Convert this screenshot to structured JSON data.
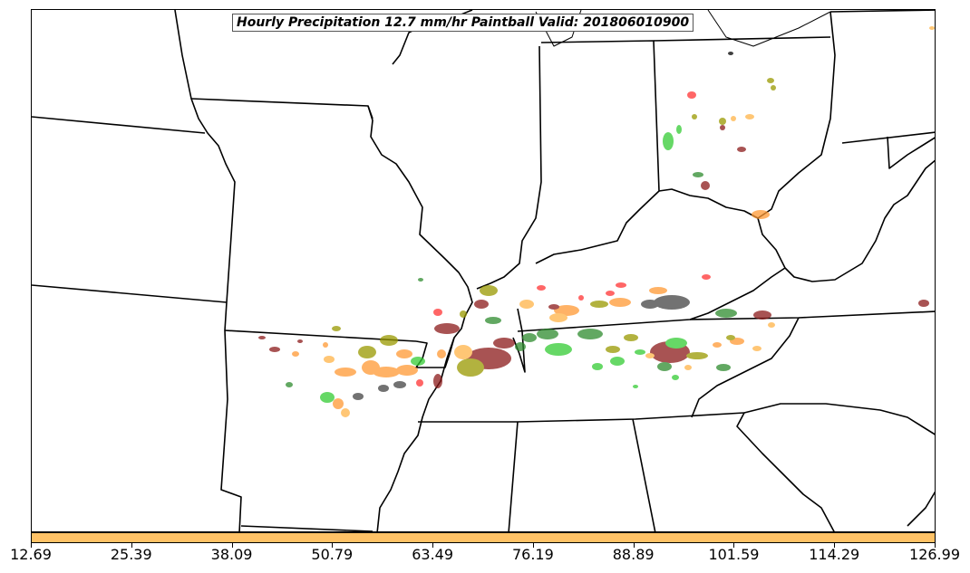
{
  "title": "Hourly Precipitation 12.7 mm/hr Paintball Valid: 201806010900",
  "colorbar": {
    "color": "#ffc266",
    "ticks": [
      "12.69",
      "25.39",
      "38.09",
      "50.79",
      "63.49",
      "76.19",
      "88.89",
      "101.59",
      "114.29",
      "126.99"
    ]
  },
  "colors": {
    "green": "#33cc33",
    "dark_green": "#2e8b2e",
    "orange": "#ff9933",
    "light_orange": "#ffb347",
    "olive": "#999900",
    "brown": "#8b1a1a",
    "red": "#ff3333",
    "gray": "#444444",
    "boundary": "#000000"
  }
}
